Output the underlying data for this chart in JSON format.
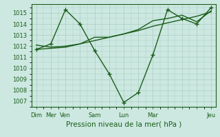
{
  "background_color": "#cce8e0",
  "grid_color": "#aaccC4",
  "line_color": "#1a5c1a",
  "marker_main": "P",
  "markersize": 3.5,
  "linewidth": 1.0,
  "ylim": [
    1006.5,
    1015.8
  ],
  "yticks": [
    1007,
    1008,
    1009,
    1010,
    1011,
    1012,
    1013,
    1014,
    1015
  ],
  "xlabel": "Pression niveau de la mer( hPa )",
  "xlabel_fontsize": 7.5,
  "tick_fontsize": 6.0,
  "x_labels": [
    "Dim",
    "Mer",
    "Ven",
    "",
    "Sam",
    "",
    "Lun",
    "",
    "Mar",
    "",
    "",
    "",
    "Jeu"
  ],
  "x_label_show_idx": [
    0,
    1,
    2,
    4,
    6,
    8,
    12
  ],
  "x_positions": [
    0,
    1,
    2,
    3,
    4,
    5,
    6,
    7,
    8,
    9,
    10,
    11,
    12
  ],
  "series1": [
    1011.7,
    1012.2,
    1015.3,
    1014.0,
    1011.6,
    1009.5,
    1006.9,
    1007.8,
    1011.2,
    1015.3,
    1014.5,
    1014.0,
    1015.5
  ],
  "series2": [
    1011.7,
    1011.8,
    1011.9,
    1012.2,
    1012.5,
    1012.8,
    1013.1,
    1013.4,
    1013.8,
    1014.1,
    1014.4,
    1014.7,
    1015.1
  ],
  "series3": [
    1012.1,
    1011.9,
    1012.0,
    1012.2,
    1012.8,
    1012.8,
    1013.1,
    1013.5,
    1014.3,
    1014.5,
    1014.8,
    1014.2,
    1015.2
  ]
}
